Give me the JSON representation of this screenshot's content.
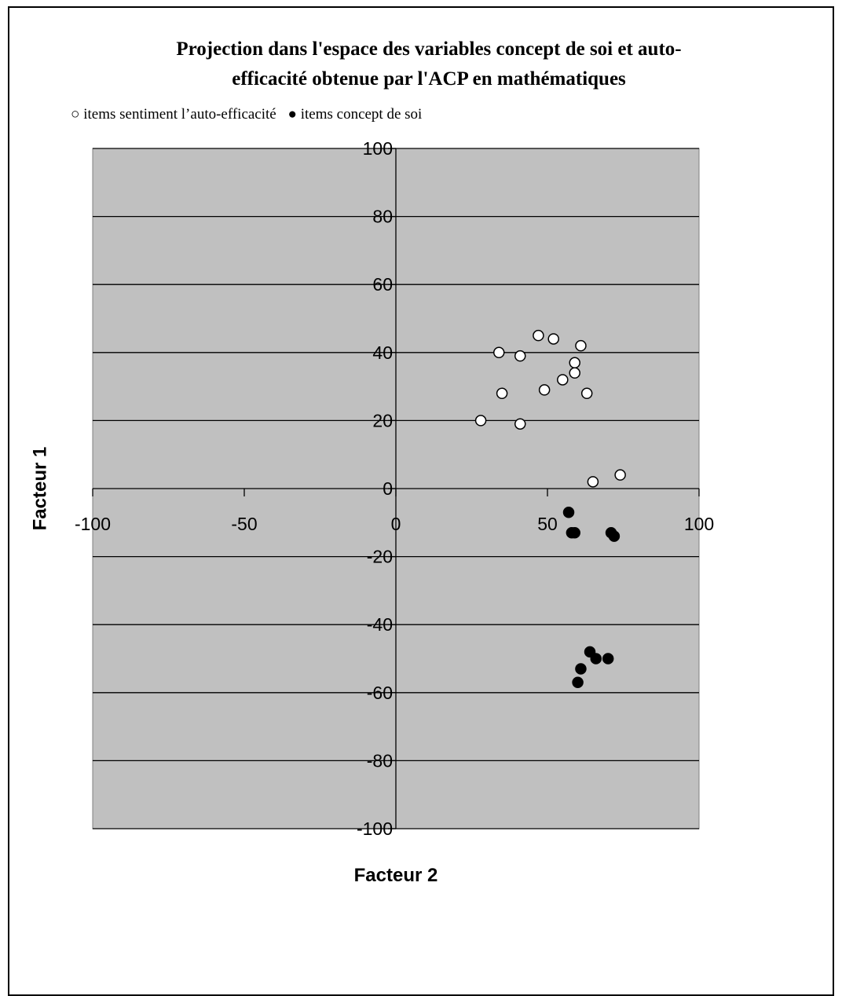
{
  "chart_data": {
    "type": "scatter",
    "title_lines": [
      "Projection dans l'espace des variables concept de soi et auto-",
      "efficacité obtenue par l'ACP en mathématiques"
    ],
    "legend": [
      {
        "symbol": "○",
        "label": "items sentiment l’auto-efficacité"
      },
      {
        "symbol": "●",
        "label": "items concept de soi"
      }
    ],
    "xlabel": "Facteur 2",
    "ylabel": "Facteur 1",
    "xlim": [
      -100,
      100
    ],
    "ylim": [
      -100,
      100
    ],
    "x_ticks": [
      -100,
      -50,
      0,
      50,
      100
    ],
    "y_ticks": [
      -100,
      -80,
      -60,
      -40,
      -20,
      0,
      20,
      40,
      60,
      80,
      100
    ],
    "grid": "horizontal",
    "plot_background": "#c0c0c0",
    "series": [
      {
        "marker": "open-circle",
        "color": "#ffffff",
        "points": [
          {
            "x": 47,
            "y": 45
          },
          {
            "x": 52,
            "y": 44
          },
          {
            "x": 61,
            "y": 42
          },
          {
            "x": 34,
            "y": 40
          },
          {
            "x": 41,
            "y": 39
          },
          {
            "x": 59,
            "y": 37
          },
          {
            "x": 59,
            "y": 34
          },
          {
            "x": 55,
            "y": 32
          },
          {
            "x": 49,
            "y": 29
          },
          {
            "x": 35,
            "y": 28
          },
          {
            "x": 63,
            "y": 28
          },
          {
            "x": 28,
            "y": 20
          },
          {
            "x": 41,
            "y": 19
          },
          {
            "x": 65,
            "y": 2
          },
          {
            "x": 74,
            "y": 4
          }
        ]
      },
      {
        "marker": "filled-circle",
        "color": "#000000",
        "points": [
          {
            "x": 57,
            "y": -7
          },
          {
            "x": 58,
            "y": -13
          },
          {
            "x": 59,
            "y": -13
          },
          {
            "x": 71,
            "y": -13
          },
          {
            "x": 72,
            "y": -14
          },
          {
            "x": 64,
            "y": -48
          },
          {
            "x": 66,
            "y": -50
          },
          {
            "x": 70,
            "y": -50
          },
          {
            "x": 61,
            "y": -53
          },
          {
            "x": 60,
            "y": -57
          }
        ]
      }
    ]
  }
}
